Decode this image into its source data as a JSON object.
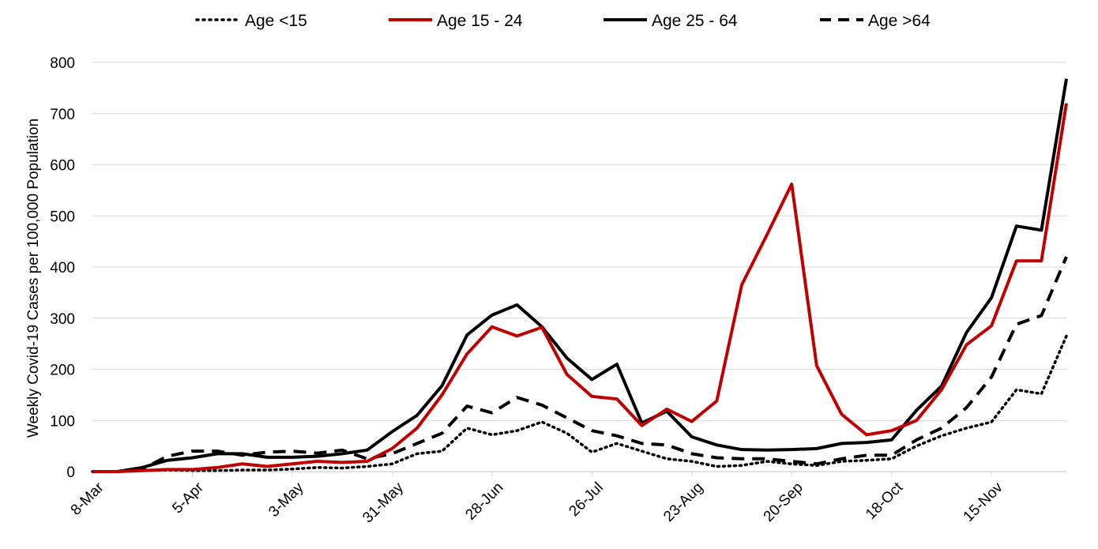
{
  "chart_data": {
    "type": "line",
    "title": "",
    "xlabel": "",
    "ylabel": "Weekly Covid-19 Cases per 100,000 Population",
    "ylim": [
      0,
      800
    ],
    "yticks": [
      0,
      100,
      200,
      300,
      400,
      500,
      600,
      700,
      800
    ],
    "grid": "horizontal",
    "legend_position": "top",
    "x_tick_labels": [
      "8-Mar",
      "5-Apr",
      "3-May",
      "31-May",
      "28-Jun",
      "26-Jul",
      "23-Aug",
      "20-Sep",
      "18-Oct",
      "15-Nov"
    ],
    "x": [
      "8-Mar",
      "15-Mar",
      "22-Mar",
      "29-Mar",
      "5-Apr",
      "12-Apr",
      "19-Apr",
      "26-Apr",
      "3-May",
      "10-May",
      "17-May",
      "24-May",
      "31-May",
      "7-Jun",
      "14-Jun",
      "21-Jun",
      "28-Jun",
      "5-Jul",
      "12-Jul",
      "19-Jul",
      "26-Jul",
      "2-Aug",
      "9-Aug",
      "16-Aug",
      "23-Aug",
      "30-Aug",
      "6-Sep",
      "13-Sep",
      "20-Sep",
      "27-Sep",
      "4-Oct",
      "11-Oct",
      "18-Oct",
      "25-Oct",
      "1-Nov",
      "8-Nov",
      "15-Nov",
      "22-Nov",
      "29-Nov",
      "6-Dec"
    ],
    "series": [
      {
        "name": "Age <15",
        "color": "#000000",
        "style": "dotted",
        "values": [
          0,
          0,
          2,
          3,
          2,
          2,
          3,
          3,
          5,
          8,
          7,
          10,
          15,
          35,
          40,
          85,
          72,
          80,
          97,
          75,
          38,
          55,
          40,
          25,
          20,
          10,
          12,
          20,
          15,
          12,
          20,
          22,
          25,
          50,
          70,
          85,
          97,
          160,
          152,
          265
        ]
      },
      {
        "name": "Age 15 - 24",
        "color": "#c00000",
        "style": "solid",
        "values": [
          0,
          0,
          2,
          4,
          4,
          8,
          15,
          10,
          15,
          20,
          18,
          20,
          45,
          85,
          150,
          230,
          283,
          265,
          282,
          190,
          147,
          142,
          90,
          122,
          98,
          138,
          365,
          462,
          562,
          207,
          112,
          72,
          80,
          100,
          160,
          248,
          285,
          412,
          412,
          720
        ]
      },
      {
        "name": "Age 25 - 64",
        "color": "#000000",
        "style": "solid",
        "values": [
          0,
          0,
          8,
          22,
          27,
          35,
          35,
          28,
          28,
          30,
          35,
          42,
          78,
          110,
          168,
          267,
          306,
          326,
          283,
          222,
          180,
          210,
          95,
          118,
          68,
          52,
          43,
          42,
          43,
          45,
          55,
          57,
          62,
          120,
          167,
          272,
          340,
          480,
          472,
          768
        ]
      },
      {
        "name": "Age >64",
        "color": "#000000",
        "style": "dashed",
        "values": [
          0,
          0,
          5,
          30,
          40,
          40,
          32,
          38,
          40,
          36,
          42,
          25,
          35,
          55,
          75,
          128,
          115,
          145,
          130,
          105,
          80,
          70,
          55,
          52,
          35,
          27,
          25,
          25,
          20,
          15,
          25,
          32,
          32,
          62,
          85,
          125,
          185,
          288,
          305,
          420
        ]
      }
    ]
  }
}
